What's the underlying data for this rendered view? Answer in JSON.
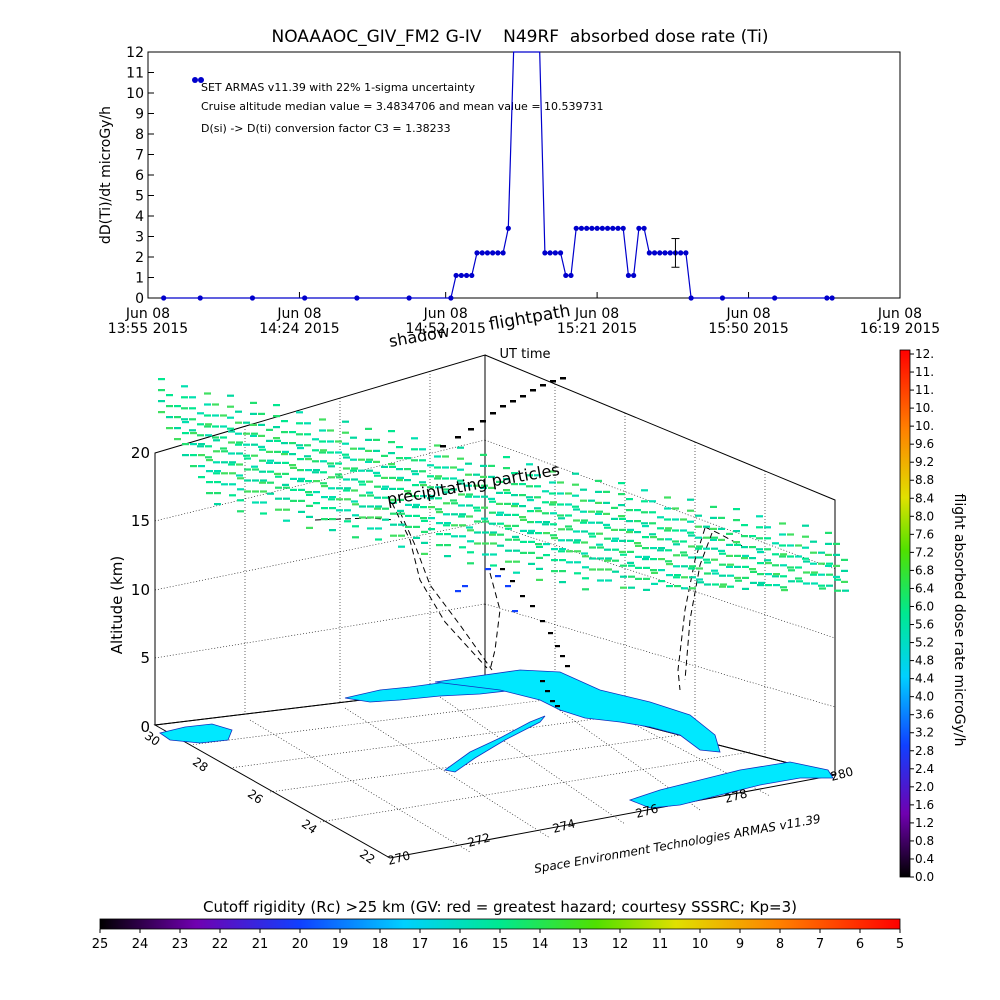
{
  "chart_data": [
    {
      "type": "line",
      "title": "NOAAAOC_GIV_FM2 G-IV    N49RF  absorbed dose rate (Ti)",
      "ylabel": "dD(Ti)/dt microGy/h",
      "xlabel": "UT time",
      "ylim": [
        0,
        12
      ],
      "ytick_labels": [
        "0",
        "1",
        "2",
        "3",
        "4",
        "5",
        "6",
        "7",
        "8",
        "9",
        "10",
        "11",
        "12"
      ],
      "xlim_minutes": [
        0,
        144
      ],
      "x_ticks": [
        {
          "line1": "Jun 08",
          "line2": "13:55 2015",
          "t": 0
        },
        {
          "line1": "Jun 08",
          "line2": "14:24 2015",
          "t": 29
        },
        {
          "line1": "Jun 08",
          "line2": "14:52 2015",
          "t": 57
        },
        {
          "line1": "Jun 08",
          "line2": "15:21 2015",
          "t": 86
        },
        {
          "line1": "Jun 08",
          "line2": "15:50 2015",
          "t": 115
        },
        {
          "line1": "Jun 08",
          "line2": "16:19 2015",
          "t": 144
        }
      ],
      "annotations": [
        "SET ARMAS v11.39 with 22% 1-sigma uncertainty",
        "Cruise altitude median value = 3.4834706 and mean value = 10.539731",
        "D(si) -> D(ti) conversion factor C3 = 1.38233"
      ],
      "series": [
        {
          "color": "#0000cc",
          "points": [
            [
              10,
              10.5
            ],
            [
              11,
              10.5
            ],
            [
              3,
              0
            ],
            [
              10,
              0
            ],
            [
              20,
              0
            ],
            [
              30,
              0
            ],
            [
              40,
              0
            ],
            [
              50,
              0
            ],
            [
              58,
              0
            ],
            [
              59,
              1.1
            ],
            [
              60,
              1.1
            ],
            [
              61,
              1.1
            ],
            [
              62,
              1.1
            ],
            [
              63,
              2.2
            ],
            [
              64,
              2.2
            ],
            [
              65,
              2.2
            ],
            [
              66,
              2.2
            ],
            [
              67,
              2.2
            ],
            [
              68,
              2.2
            ],
            [
              69,
              3.4
            ],
            [
              70,
              12.5
            ],
            [
              75,
              12.5
            ],
            [
              76,
              2.2
            ],
            [
              77,
              2.2
            ],
            [
              78,
              2.2
            ],
            [
              79,
              2.2
            ],
            [
              80,
              1.1
            ],
            [
              81,
              1.1
            ],
            [
              82,
              3.4
            ],
            [
              83,
              3.4
            ],
            [
              84,
              3.4
            ],
            [
              85,
              3.4
            ],
            [
              86,
              3.4
            ],
            [
              87,
              3.4
            ],
            [
              88,
              3.4
            ],
            [
              89,
              3.4
            ],
            [
              90,
              3.4
            ],
            [
              91,
              3.4
            ],
            [
              92,
              1.1
            ],
            [
              93,
              1.1
            ],
            [
              94,
              3.4
            ],
            [
              95,
              3.4
            ],
            [
              96,
              2.2
            ],
            [
              97,
              2.2
            ],
            [
              98,
              2.2
            ],
            [
              99,
              2.2
            ],
            [
              100,
              2.2
            ],
            [
              101,
              2.2
            ],
            [
              102,
              2.2
            ],
            [
              103,
              2.2
            ],
            [
              104,
              0
            ],
            [
              110,
              0
            ],
            [
              120,
              0
            ],
            [
              130,
              0
            ],
            [
              131,
              0
            ]
          ],
          "error_bar": {
            "t": 101,
            "low": 1.5,
            "high": 2.9
          }
        }
      ]
    },
    {
      "type": "scatter",
      "projection": "3d",
      "zlabel": "Altitude (km)",
      "z_ticks": [
        "0",
        "5",
        "10",
        "15",
        "20"
      ],
      "lat_ticks": [
        "30",
        "28",
        "26",
        "24",
        "22"
      ],
      "lon_ticks": [
        "270",
        "272",
        "274",
        "276",
        "278",
        "280"
      ],
      "labels": {
        "flightpath": "flightpath",
        "shadow": "shadow",
        "precipitating": "precipitating particles",
        "credit": "Space Environment Technologies ARMAS v11.39"
      },
      "land_color": "#00e8ff",
      "colorbar": {
        "label": "flight absorbed dose rate microGy/h",
        "tick_labels": [
          "12.",
          "11.",
          "11.",
          "10.",
          "10.",
          "9.6",
          "9.2",
          "8.8",
          "8.4",
          "8.0",
          "7.6",
          "7.2",
          "6.8",
          "6.4",
          "6.0",
          "5.6",
          "5.2",
          "4.8",
          "4.4",
          "4.0",
          "3.6",
          "3.2",
          "2.8",
          "2.4",
          "2.0",
          "1.6",
          "1.2",
          "0.8",
          "0.4",
          "0.0"
        ]
      }
    },
    {
      "type": "heatmap",
      "colorbar_title": "Cutoff rigidity (Rc) >25 km (GV: red = greatest hazard; courtesy SSSRC; Kp=3)",
      "tick_labels": [
        "25",
        "24",
        "23",
        "22",
        "21",
        "20",
        "19",
        "18",
        "17",
        "16",
        "15",
        "14",
        "13",
        "12",
        "11",
        "10",
        "9",
        "8",
        "7",
        "6",
        "5"
      ]
    }
  ]
}
